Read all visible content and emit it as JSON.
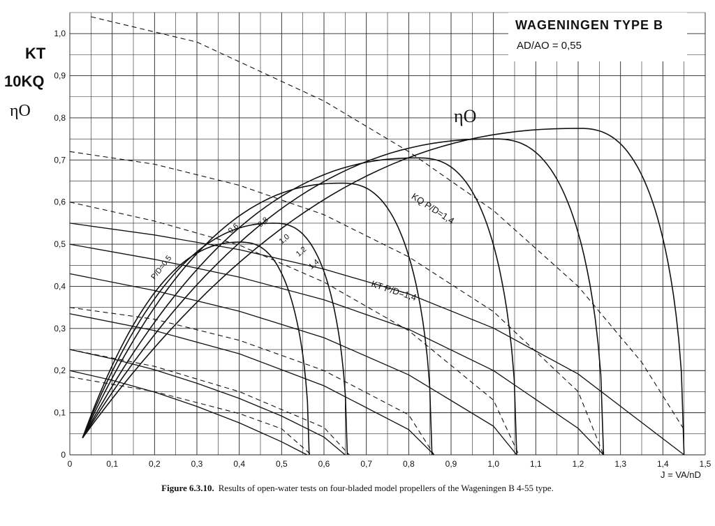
{
  "chart_data": {
    "type": "line",
    "title": "WAGENINGEN TYPE B",
    "subtitle": "AD/AO = 0,55",
    "ylabel_lines": [
      "KT",
      "10KQ",
      "ηO"
    ],
    "xlabel": "J = VA/nD",
    "xlim": [
      0,
      1.5
    ],
    "ylim": [
      0,
      1.05
    ],
    "x_ticks": [
      "0",
      "0,1",
      "0,2",
      "0,3",
      "0,4",
      "0,5",
      "0,6",
      "0,7",
      "0,8",
      "0,9",
      "1,0",
      "1,1",
      "1,2",
      "1,3",
      "1,4",
      "1,5"
    ],
    "y_ticks": [
      "0",
      "0,1",
      "0,2",
      "0,3",
      "0,4",
      "0,5",
      "0,6",
      "0,7",
      "0,8",
      "0,9",
      "1,0"
    ],
    "grid": true,
    "eta_label": "ηO",
    "kq_group_label": "KQ P/D=1,4",
    "kt_group_label": "KT P/D=1,4",
    "eta_pd_labels": [
      "P/D=0,5",
      "0,6",
      "0,8",
      "1,0",
      "1,2",
      "1,4"
    ],
    "series": [
      {
        "group": "KT",
        "pd": 0.5,
        "x": [
          0,
          0.1,
          0.2,
          0.3,
          0.4,
          0.5,
          0.56
        ],
        "y": [
          0.2,
          0.177,
          0.149,
          0.115,
          0.076,
          0.031,
          0.0
        ]
      },
      {
        "group": "KT",
        "pd": 0.6,
        "x": [
          0,
          0.1,
          0.2,
          0.3,
          0.4,
          0.5,
          0.6,
          0.65
        ],
        "y": [
          0.25,
          0.228,
          0.202,
          0.17,
          0.134,
          0.092,
          0.042,
          0.0
        ]
      },
      {
        "group": "KT",
        "pd": 0.8,
        "x": [
          0,
          0.2,
          0.4,
          0.6,
          0.8,
          0.86
        ],
        "y": [
          0.335,
          0.295,
          0.24,
          0.164,
          0.06,
          0.0
        ]
      },
      {
        "group": "KT",
        "pd": 1.0,
        "x": [
          0,
          0.2,
          0.4,
          0.6,
          0.8,
          1.0,
          1.055
        ],
        "y": [
          0.43,
          0.39,
          0.341,
          0.278,
          0.19,
          0.068,
          0.0
        ]
      },
      {
        "group": "KT",
        "pd": 1.2,
        "x": [
          0,
          0.2,
          0.4,
          0.6,
          0.8,
          1.0,
          1.2,
          1.26
        ],
        "y": [
          0.5,
          0.464,
          0.422,
          0.368,
          0.298,
          0.2,
          0.063,
          0.0
        ]
      },
      {
        "group": "KT",
        "pd": 1.4,
        "x": [
          0,
          0.2,
          0.4,
          0.6,
          0.8,
          1.0,
          1.2,
          1.45
        ],
        "y": [
          0.55,
          0.522,
          0.487,
          0.441,
          0.382,
          0.301,
          0.192,
          0.0
        ]
      },
      {
        "group": "10KQ",
        "pd": 0.5,
        "x": [
          0,
          0.2,
          0.4,
          0.5,
          0.57
        ],
        "y": [
          0.185,
          0.15,
          0.098,
          0.062,
          0.0
        ]
      },
      {
        "group": "10KQ",
        "pd": 0.6,
        "x": [
          0,
          0.2,
          0.4,
          0.6,
          0.66
        ],
        "y": [
          0.25,
          0.21,
          0.15,
          0.065,
          0.0
        ]
      },
      {
        "group": "10KQ",
        "pd": 0.8,
        "x": [
          0,
          0.2,
          0.4,
          0.6,
          0.8,
          0.86
        ],
        "y": [
          0.35,
          0.322,
          0.272,
          0.2,
          0.095,
          0.0
        ]
      },
      {
        "group": "10KQ",
        "pd": 1.0,
        "x": [
          0,
          0.2,
          0.4,
          0.6,
          0.8,
          1.0,
          1.06
        ],
        "y": [
          0.6,
          0.555,
          0.498,
          0.41,
          0.295,
          0.13,
          0.0
        ]
      },
      {
        "group": "10KQ",
        "pd": 1.2,
        "x": [
          0,
          0.2,
          0.4,
          0.6,
          0.8,
          1.0,
          1.2,
          1.26
        ],
        "y": [
          0.72,
          0.69,
          0.64,
          0.57,
          0.47,
          0.34,
          0.15,
          0.0
        ]
      },
      {
        "group": "10KQ",
        "pd": 1.4,
        "x": [
          0.05,
          0.3,
          0.6,
          0.8,
          1.0,
          1.2,
          1.35,
          1.45
        ],
        "y": [
          1.04,
          0.98,
          0.84,
          0.72,
          0.58,
          0.4,
          0.22,
          0.06
        ]
      },
      {
        "group": "etaO",
        "pd": 0.5,
        "peak": [
          0.4,
          0.505
        ],
        "end": 0.565
      },
      {
        "group": "etaO",
        "pd": 0.6,
        "peak": [
          0.48,
          0.55
        ],
        "end": 0.655
      },
      {
        "group": "etaO",
        "pd": 0.8,
        "peak": [
          0.64,
          0.645
        ],
        "end": 0.855
      },
      {
        "group": "etaO",
        "pd": 1.0,
        "peak": [
          0.82,
          0.705
        ],
        "end": 1.055
      },
      {
        "group": "etaO",
        "pd": 1.2,
        "peak": [
          1.0,
          0.75
        ],
        "end": 1.26
      },
      {
        "group": "etaO",
        "pd": 1.4,
        "peak": [
          1.2,
          0.775
        ],
        "end": 1.45
      }
    ]
  },
  "caption": {
    "label": "Figure 6.3.10.",
    "text": "Results of open-water tests on four-bladed model propellers of the Wageningen B 4-55 type."
  }
}
